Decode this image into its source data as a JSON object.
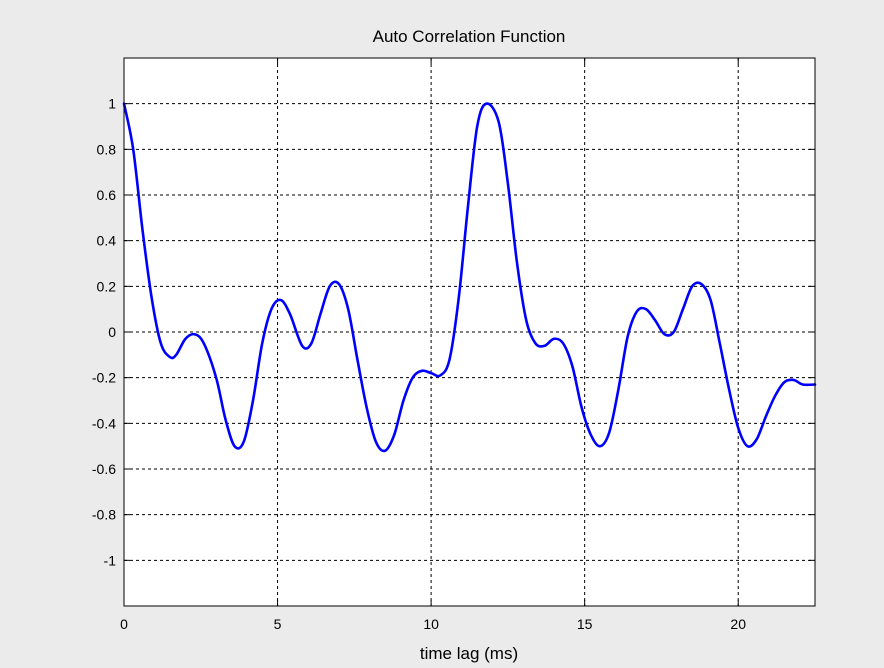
{
  "figure": {
    "background": "#ebebeb",
    "axes_background": "#ffffff",
    "line_color": "#0000ff",
    "grid_color": "#000000"
  },
  "chart_data": {
    "type": "line",
    "title": "Auto Correlation Function",
    "xlabel": "time lag (ms)",
    "ylabel": "",
    "xlim": [
      0,
      22.5
    ],
    "ylim": [
      -1.2,
      1.2
    ],
    "grid": true,
    "x_ticks": [
      0,
      5,
      10,
      15,
      20
    ],
    "x_tick_labels": [
      "0",
      "5",
      "10",
      "15",
      "20"
    ],
    "y_ticks": [
      -1,
      -0.8,
      -0.6,
      -0.4,
      -0.2,
      0,
      0.2,
      0.4,
      0.6,
      0.8,
      1
    ],
    "y_tick_labels": [
      "-1",
      "-0.8",
      "-0.6",
      "-0.4",
      "-0.2",
      "0",
      "0.2",
      "0.4",
      "0.6",
      "0.8",
      "1"
    ],
    "series": [
      {
        "color": "#0000ff",
        "x": [
          0,
          0.3,
          0.6,
          0.9,
          1.2,
          1.5,
          1.7,
          2.0,
          2.3,
          2.6,
          3.0,
          3.3,
          3.6,
          3.9,
          4.2,
          4.5,
          4.8,
          5.1,
          5.4,
          5.8,
          6.1,
          6.4,
          6.7,
          7.0,
          7.3,
          7.6,
          7.9,
          8.2,
          8.5,
          8.8,
          9.1,
          9.4,
          9.7,
          10.0,
          10.3,
          10.6,
          10.9,
          11.2,
          11.5,
          11.8,
          12.2,
          12.5,
          12.8,
          13.1,
          13.4,
          13.7,
          14.0,
          14.3,
          14.6,
          14.9,
          15.2,
          15.5,
          15.8,
          16.1,
          16.4,
          16.7,
          17.0,
          17.3,
          17.6,
          17.9,
          18.2,
          18.5,
          18.8,
          19.1,
          19.4,
          19.7,
          20.0,
          20.3,
          20.6,
          20.9,
          21.2,
          21.5,
          21.8,
          22.1,
          22.5
        ],
        "y": [
          1.0,
          0.8,
          0.45,
          0.15,
          -0.05,
          -0.11,
          -0.1,
          -0.03,
          -0.01,
          -0.05,
          -0.2,
          -0.38,
          -0.5,
          -0.48,
          -0.3,
          -0.05,
          0.1,
          0.14,
          0.08,
          -0.06,
          -0.05,
          0.08,
          0.2,
          0.21,
          0.1,
          -0.12,
          -0.33,
          -0.48,
          -0.52,
          -0.45,
          -0.3,
          -0.2,
          -0.17,
          -0.18,
          -0.19,
          -0.12,
          0.15,
          0.55,
          0.9,
          1.0,
          0.92,
          0.65,
          0.3,
          0.05,
          -0.05,
          -0.06,
          -0.03,
          -0.05,
          -0.15,
          -0.33,
          -0.45,
          -0.5,
          -0.44,
          -0.25,
          -0.02,
          0.09,
          0.1,
          0.05,
          -0.01,
          0.0,
          0.1,
          0.2,
          0.21,
          0.14,
          -0.05,
          -0.25,
          -0.42,
          -0.5,
          -0.47,
          -0.37,
          -0.28,
          -0.22,
          -0.21,
          -0.23,
          -0.23
        ]
      }
    ]
  }
}
